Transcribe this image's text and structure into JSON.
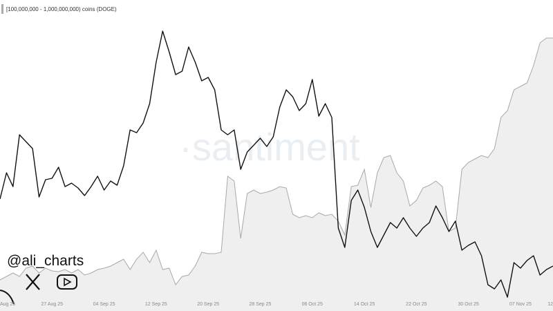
{
  "chart_data": {
    "type": "line_area",
    "legend_label": "[100,000,000 - 1,000,000,000) coins (DOGE)",
    "watermark": "·santiment",
    "handle": "@ali_charts",
    "categories": [
      "Aug 25",
      null,
      null,
      null,
      null,
      null,
      null,
      null,
      "27 Aug 25",
      null,
      null,
      null,
      null,
      null,
      null,
      null,
      "04 Sep 25",
      null,
      null,
      null,
      null,
      null,
      null,
      null,
      "12 Sep 25",
      null,
      null,
      null,
      null,
      null,
      null,
      null,
      "20 Sep 25",
      null,
      null,
      null,
      null,
      null,
      null,
      null,
      "28 Sep 25",
      null,
      null,
      null,
      null,
      null,
      null,
      null,
      "06 Oct 25",
      null,
      null,
      null,
      null,
      null,
      null,
      null,
      "14 Oct 25",
      null,
      null,
      null,
      null,
      null,
      null,
      null,
      "22 Oct 25",
      null,
      null,
      null,
      null,
      null,
      null,
      null,
      "30 Oct 25",
      null,
      null,
      null,
      null,
      null,
      null,
      null,
      "07 Nov 25",
      null,
      null,
      null,
      null,
      "12"
    ],
    "series": [
      {
        "color": "#111111",
        "style": "line",
        "values": [
          142,
          180,
          160,
          235,
          225,
          215,
          145,
          170,
          172,
          188,
          160,
          165,
          158,
          147,
          160,
          175,
          155,
          168,
          162,
          190,
          242,
          238,
          252,
          280,
          340,
          385,
          355,
          322,
          327,
          362,
          340,
          313,
          318,
          300,
          242,
          235,
          242,
          185,
          210,
          220,
          230,
          218,
          232,
          275,
          300,
          290,
          270,
          280,
          315,
          262,
          280,
          260,
          100,
          72,
          140,
          155,
          130,
          95,
          72,
          90,
          108,
          100,
          115,
          100,
          88,
          100,
          108,
          132,
          115,
          95,
          110,
          68,
          75,
          80,
          60,
          18,
          12,
          25,
          0,
          50,
          42,
          53,
          60,
          32,
          40,
          45
        ]
      },
      {
        "name": "[100,000,000 - 1,000,000,000) coins (DOGE)",
        "color": "#a8a8a8",
        "fill": "#efefef",
        "style": "area",
        "values": [
          25,
          30,
          35,
          30,
          42,
          45,
          35,
          42,
          38,
          37,
          40,
          35,
          40,
          32,
          35,
          40,
          42,
          45,
          50,
          55,
          40,
          55,
          65,
          50,
          68,
          40,
          42,
          18,
          30,
          32,
          45,
          65,
          63,
          63,
          65,
          175,
          168,
          85,
          150,
          155,
          150,
          152,
          155,
          160,
          158,
          120,
          115,
          118,
          115,
          122,
          118,
          120,
          110,
          90,
          160,
          162,
          185,
          130,
          180,
          202,
          205,
          180,
          168,
          132,
          140,
          158,
          162,
          168,
          160,
          95,
          100,
          185,
          195,
          200,
          205,
          202,
          215,
          260,
          270,
          300,
          305,
          310,
          335,
          368,
          375,
          375
        ]
      }
    ],
    "ylim": [
      0,
      390
    ]
  }
}
